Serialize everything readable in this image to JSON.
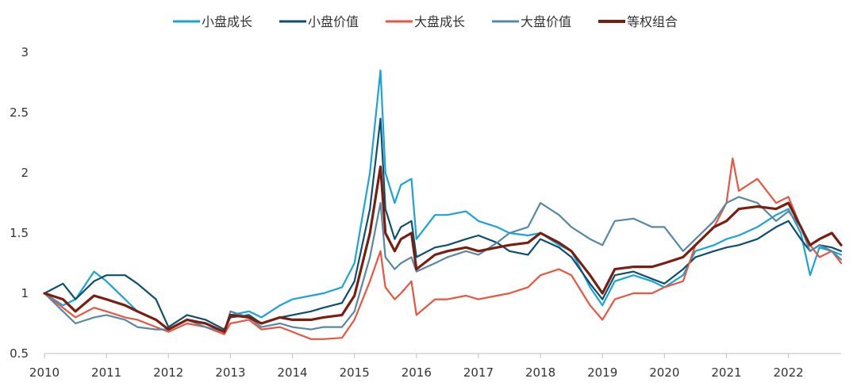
{
  "chart_data": {
    "type": "line",
    "title": "",
    "xlabel": "",
    "ylabel": "",
    "ylim": [
      0.5,
      3
    ],
    "xlim": [
      2010,
      2022.85
    ],
    "y_ticks": [
      {
        "value": 0.5,
        "label": "0.5"
      },
      {
        "value": 1,
        "label": "1"
      },
      {
        "value": 1.5,
        "label": "1.5"
      },
      {
        "value": 2,
        "label": "2"
      },
      {
        "value": 2.5,
        "label": "2.5"
      },
      {
        "value": 3,
        "label": "3"
      }
    ],
    "x_ticks": [
      {
        "value": 2010,
        "label": "2010"
      },
      {
        "value": 2011,
        "label": "2011"
      },
      {
        "value": 2012,
        "label": "2012"
      },
      {
        "value": 2013,
        "label": "2013"
      },
      {
        "value": 2014,
        "label": "2014"
      },
      {
        "value": 2015,
        "label": "2015"
      },
      {
        "value": 2016,
        "label": "2016"
      },
      {
        "value": 2017,
        "label": "2017"
      },
      {
        "value": 2018,
        "label": "2018"
      },
      {
        "value": 2019,
        "label": "2019"
      },
      {
        "value": 2020,
        "label": "2020"
      },
      {
        "value": 2021,
        "label": "2021"
      },
      {
        "value": 2022,
        "label": "2022"
      }
    ],
    "grid": false,
    "legend_position": "top",
    "series": [
      {
        "name": "小盘成长",
        "color": "#1aa3d9",
        "x": [
          2010.0,
          2010.3,
          2010.5,
          2010.8,
          2011.0,
          2011.3,
          2011.5,
          2011.8,
          2012.0,
          2012.3,
          2012.6,
          2012.9,
          2013.0,
          2013.3,
          2013.5,
          2013.8,
          2014.0,
          2014.3,
          2014.5,
          2014.8,
          2015.0,
          2015.25,
          2015.42,
          2015.5,
          2015.65,
          2015.75,
          2015.92,
          2016.0,
          2016.3,
          2016.5,
          2016.8,
          2017.0,
          2017.3,
          2017.5,
          2017.8,
          2018.0,
          2018.3,
          2018.5,
          2018.8,
          2019.0,
          2019.2,
          2019.5,
          2019.8,
          2020.0,
          2020.3,
          2020.5,
          2020.8,
          2021.0,
          2021.2,
          2021.5,
          2021.8,
          2022.0,
          2022.2,
          2022.35,
          2022.5,
          2022.7,
          2022.85
        ],
        "y": [
          1.0,
          0.9,
          0.95,
          1.18,
          1.1,
          0.95,
          0.85,
          0.78,
          0.7,
          0.78,
          0.75,
          0.68,
          0.82,
          0.85,
          0.8,
          0.9,
          0.95,
          0.98,
          1.0,
          1.05,
          1.25,
          2.0,
          2.85,
          2.0,
          1.75,
          1.9,
          1.95,
          1.45,
          1.65,
          1.65,
          1.68,
          1.6,
          1.55,
          1.5,
          1.48,
          1.5,
          1.4,
          1.35,
          1.05,
          0.9,
          1.1,
          1.15,
          1.1,
          1.05,
          1.15,
          1.35,
          1.4,
          1.45,
          1.48,
          1.55,
          1.65,
          1.7,
          1.5,
          1.15,
          1.38,
          1.35,
          1.32
        ]
      },
      {
        "name": "小盘价值",
        "color": "#0d4f6e",
        "x": [
          2010.0,
          2010.3,
          2010.5,
          2010.8,
          2011.0,
          2011.3,
          2011.5,
          2011.8,
          2012.0,
          2012.3,
          2012.6,
          2012.9,
          2013.0,
          2013.3,
          2013.5,
          2013.8,
          2014.0,
          2014.3,
          2014.5,
          2014.8,
          2015.0,
          2015.25,
          2015.42,
          2015.5,
          2015.65,
          2015.75,
          2015.92,
          2016.0,
          2016.3,
          2016.5,
          2016.8,
          2017.0,
          2017.3,
          2017.5,
          2017.8,
          2018.0,
          2018.3,
          2018.5,
          2018.8,
          2019.0,
          2019.2,
          2019.5,
          2019.8,
          2020.0,
          2020.3,
          2020.5,
          2020.8,
          2021.0,
          2021.2,
          2021.5,
          2021.8,
          2022.0,
          2022.2,
          2022.35,
          2022.5,
          2022.7,
          2022.85
        ],
        "y": [
          1.0,
          1.08,
          0.95,
          1.1,
          1.15,
          1.15,
          1.08,
          0.95,
          0.72,
          0.82,
          0.78,
          0.7,
          0.8,
          0.82,
          0.75,
          0.8,
          0.82,
          0.85,
          0.88,
          0.92,
          1.1,
          1.7,
          2.45,
          1.7,
          1.45,
          1.55,
          1.6,
          1.3,
          1.38,
          1.4,
          1.45,
          1.48,
          1.42,
          1.35,
          1.32,
          1.45,
          1.38,
          1.3,
          1.08,
          0.95,
          1.15,
          1.18,
          1.12,
          1.08,
          1.2,
          1.3,
          1.35,
          1.38,
          1.4,
          1.45,
          1.55,
          1.6,
          1.45,
          1.35,
          1.4,
          1.38,
          1.35
        ]
      },
      {
        "name": "大盘成长",
        "color": "#e8563f",
        "x": [
          2010.0,
          2010.3,
          2010.5,
          2010.8,
          2011.0,
          2011.3,
          2011.5,
          2011.8,
          2012.0,
          2012.3,
          2012.6,
          2012.9,
          2013.0,
          2013.3,
          2013.5,
          2013.8,
          2014.0,
          2014.3,
          2014.5,
          2014.8,
          2015.0,
          2015.25,
          2015.42,
          2015.5,
          2015.65,
          2015.75,
          2015.92,
          2016.0,
          2016.3,
          2016.5,
          2016.8,
          2017.0,
          2017.3,
          2017.5,
          2017.8,
          2018.0,
          2018.3,
          2018.5,
          2018.8,
          2019.0,
          2019.2,
          2019.5,
          2019.8,
          2020.0,
          2020.3,
          2020.5,
          2020.8,
          2021.0,
          2021.1,
          2021.2,
          2021.5,
          2021.8,
          2022.0,
          2022.2,
          2022.35,
          2022.5,
          2022.7,
          2022.85
        ],
        "y": [
          1.0,
          0.88,
          0.8,
          0.88,
          0.85,
          0.8,
          0.78,
          0.72,
          0.68,
          0.75,
          0.72,
          0.66,
          0.75,
          0.78,
          0.7,
          0.72,
          0.68,
          0.62,
          0.62,
          0.63,
          0.78,
          1.1,
          1.35,
          1.05,
          0.95,
          1.0,
          1.1,
          0.82,
          0.95,
          0.95,
          0.98,
          0.95,
          0.98,
          1.0,
          1.05,
          1.15,
          1.2,
          1.15,
          0.9,
          0.78,
          0.95,
          1.0,
          1.0,
          1.05,
          1.1,
          1.4,
          1.55,
          1.75,
          2.12,
          1.85,
          1.95,
          1.75,
          1.8,
          1.55,
          1.4,
          1.3,
          1.35,
          1.25
        ]
      },
      {
        "name": "大盘价值",
        "color": "#5589a5",
        "x": [
          2010.0,
          2010.3,
          2010.5,
          2010.8,
          2011.0,
          2011.3,
          2011.5,
          2011.8,
          2012.0,
          2012.3,
          2012.6,
          2012.9,
          2013.0,
          2013.3,
          2013.5,
          2013.8,
          2014.0,
          2014.3,
          2014.5,
          2014.8,
          2015.0,
          2015.25,
          2015.42,
          2015.5,
          2015.65,
          2015.75,
          2015.92,
          2016.0,
          2016.3,
          2016.5,
          2016.8,
          2017.0,
          2017.3,
          2017.5,
          2017.8,
          2018.0,
          2018.3,
          2018.5,
          2018.8,
          2019.0,
          2019.2,
          2019.5,
          2019.8,
          2020.0,
          2020.3,
          2020.5,
          2020.8,
          2021.0,
          2021.2,
          2021.5,
          2021.8,
          2022.0,
          2022.2,
          2022.35,
          2022.5,
          2022.7,
          2022.85
        ],
        "y": [
          1.0,
          0.85,
          0.75,
          0.8,
          0.82,
          0.78,
          0.72,
          0.7,
          0.7,
          0.78,
          0.72,
          0.68,
          0.85,
          0.8,
          0.72,
          0.75,
          0.72,
          0.7,
          0.72,
          0.72,
          0.85,
          1.3,
          1.75,
          1.3,
          1.2,
          1.25,
          1.3,
          1.18,
          1.25,
          1.3,
          1.35,
          1.32,
          1.42,
          1.5,
          1.55,
          1.75,
          1.65,
          1.55,
          1.45,
          1.4,
          1.6,
          1.62,
          1.55,
          1.55,
          1.35,
          1.45,
          1.6,
          1.75,
          1.8,
          1.75,
          1.6,
          1.68,
          1.55,
          1.35,
          1.4,
          1.35,
          1.28
        ]
      },
      {
        "name": "等权组合",
        "color": "#7a1e10",
        "x": [
          2010.0,
          2010.3,
          2010.5,
          2010.8,
          2011.0,
          2011.3,
          2011.5,
          2011.8,
          2012.0,
          2012.3,
          2012.6,
          2012.9,
          2013.0,
          2013.3,
          2013.5,
          2013.8,
          2014.0,
          2014.3,
          2014.5,
          2014.8,
          2015.0,
          2015.25,
          2015.42,
          2015.5,
          2015.65,
          2015.75,
          2015.92,
          2016.0,
          2016.3,
          2016.5,
          2016.8,
          2017.0,
          2017.3,
          2017.5,
          2017.8,
          2018.0,
          2018.3,
          2018.5,
          2018.8,
          2019.0,
          2019.2,
          2019.5,
          2019.8,
          2020.0,
          2020.3,
          2020.5,
          2020.8,
          2021.0,
          2021.2,
          2021.5,
          2021.8,
          2022.0,
          2022.2,
          2022.35,
          2022.5,
          2022.7,
          2022.85
        ],
        "y": [
          1.0,
          0.95,
          0.85,
          0.98,
          0.95,
          0.9,
          0.85,
          0.78,
          0.7,
          0.78,
          0.75,
          0.68,
          0.82,
          0.8,
          0.75,
          0.8,
          0.78,
          0.78,
          0.8,
          0.82,
          0.98,
          1.5,
          2.05,
          1.5,
          1.35,
          1.45,
          1.5,
          1.2,
          1.32,
          1.35,
          1.38,
          1.35,
          1.38,
          1.4,
          1.42,
          1.5,
          1.42,
          1.35,
          1.15,
          1.0,
          1.2,
          1.22,
          1.22,
          1.25,
          1.3,
          1.4,
          1.55,
          1.6,
          1.7,
          1.72,
          1.7,
          1.75,
          1.55,
          1.4,
          1.45,
          1.5,
          1.4
        ]
      }
    ]
  }
}
